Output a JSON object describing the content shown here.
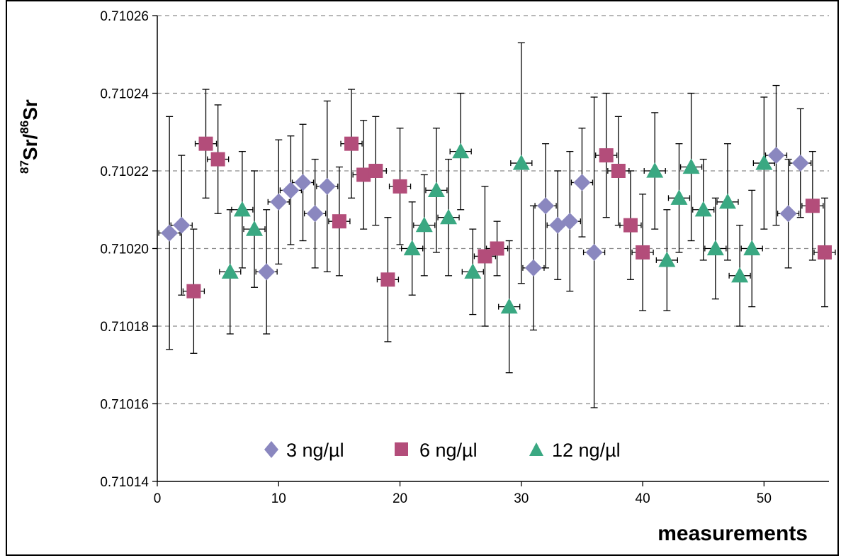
{
  "chart_data": {
    "type": "scatter",
    "xlabel": "measurements",
    "ylabel_parts": {
      "sup1": "87",
      "base1": "Sr/",
      "sup2": "86",
      "base2": "Sr"
    },
    "xlim": [
      0,
      55
    ],
    "ylim": [
      0.71014,
      0.71026
    ],
    "x_ticks": [
      0,
      10,
      20,
      30,
      40,
      50
    ],
    "y_ticks": [
      "0.71014",
      "0.71016",
      "0.71018",
      "0.71020",
      "0.71022",
      "0.71024",
      "0.71026"
    ],
    "y_tick_values": [
      0.71014,
      0.71016,
      0.71018,
      0.7102,
      0.71022,
      0.71024,
      0.71026
    ],
    "grid": "horizontal dashed",
    "legend_position": "bottom-center",
    "series": [
      {
        "name": "3 ng/µl",
        "marker": "diamond",
        "color": "#8a87bf",
        "points": [
          {
            "x": 1,
            "y": 0.710204,
            "err": 3e-05
          },
          {
            "x": 2,
            "y": 0.710206,
            "err": 1.8e-05
          },
          {
            "x": 9,
            "y": 0.710194,
            "err": 1.6e-05
          },
          {
            "x": 10,
            "y": 0.710212,
            "err": 1.6e-05
          },
          {
            "x": 11,
            "y": 0.710215,
            "err": 1.4e-05
          },
          {
            "x": 12,
            "y": 0.710217,
            "err": 1.5e-05
          },
          {
            "x": 13,
            "y": 0.710209,
            "err": 1.4e-05
          },
          {
            "x": 14,
            "y": 0.710216,
            "err": 2.2e-05
          },
          {
            "x": 31,
            "y": 0.710195,
            "err": 1.6e-05
          },
          {
            "x": 32,
            "y": 0.710211,
            "err": 1.6e-05
          },
          {
            "x": 33,
            "y": 0.710206,
            "err": 1.4e-05
          },
          {
            "x": 34,
            "y": 0.710207,
            "err": 1.8e-05
          },
          {
            "x": 35,
            "y": 0.710217,
            "err": 1.4e-05
          },
          {
            "x": 36,
            "y": 0.710199,
            "err": 4e-05
          },
          {
            "x": 51,
            "y": 0.710224,
            "err": 1.8e-05
          },
          {
            "x": 52,
            "y": 0.710209,
            "err": 1.4e-05
          },
          {
            "x": 53,
            "y": 0.710222,
            "err": 1.4e-05
          }
        ]
      },
      {
        "name": "6 ng/µl",
        "marker": "square",
        "color": "#b34d7a",
        "points": [
          {
            "x": 3,
            "y": 0.710189,
            "err": 1.6e-05
          },
          {
            "x": 4,
            "y": 0.710227,
            "err": 1.4e-05
          },
          {
            "x": 5,
            "y": 0.710223,
            "err": 1.4e-05
          },
          {
            "x": 15,
            "y": 0.710207,
            "err": 1.4e-05
          },
          {
            "x": 16,
            "y": 0.710227,
            "err": 1.4e-05
          },
          {
            "x": 17,
            "y": 0.710219,
            "err": 1.4e-05
          },
          {
            "x": 18,
            "y": 0.71022,
            "err": 1.4e-05
          },
          {
            "x": 19,
            "y": 0.710192,
            "err": 1.6e-05
          },
          {
            "x": 20,
            "y": 0.710216,
            "err": 1.5e-05
          },
          {
            "x": 27,
            "y": 0.710198,
            "err": 1.8e-05
          },
          {
            "x": 28,
            "y": 0.7102,
            "err": 7e-06
          },
          {
            "x": 37,
            "y": 0.710224,
            "err": 1.6e-05
          },
          {
            "x": 38,
            "y": 0.71022,
            "err": 1.4e-05
          },
          {
            "x": 39,
            "y": 0.710206,
            "err": 1.4e-05
          },
          {
            "x": 40,
            "y": 0.710199,
            "err": 1.5e-05
          },
          {
            "x": 54,
            "y": 0.710211,
            "err": 1.4e-05
          },
          {
            "x": 55,
            "y": 0.710199,
            "err": 1.4e-05
          }
        ]
      },
      {
        "name": "12 ng/µl",
        "marker": "triangle",
        "color": "#3aa882",
        "points": [
          {
            "x": 6,
            "y": 0.710194,
            "err": 1.6e-05
          },
          {
            "x": 7,
            "y": 0.71021,
            "err": 1.5e-05
          },
          {
            "x": 8,
            "y": 0.710205,
            "err": 1.5e-05
          },
          {
            "x": 21,
            "y": 0.7102,
            "err": 1.2e-05
          },
          {
            "x": 22,
            "y": 0.710206,
            "err": 1.3e-05
          },
          {
            "x": 23,
            "y": 0.710215,
            "err": 1.6e-05
          },
          {
            "x": 24,
            "y": 0.710208,
            "err": 1.5e-05
          },
          {
            "x": 25,
            "y": 0.710225,
            "err": 1.5e-05
          },
          {
            "x": 26,
            "y": 0.710194,
            "err": 1.1e-05
          },
          {
            "x": 29,
            "y": 0.710185,
            "err": 1.7e-05
          },
          {
            "x": 30,
            "y": 0.710222,
            "err": 3.1e-05
          },
          {
            "x": 41,
            "y": 0.71022,
            "err": 1.5e-05
          },
          {
            "x": 42,
            "y": 0.710197,
            "err": 1.3e-05
          },
          {
            "x": 43,
            "y": 0.710213,
            "err": 1.4e-05
          },
          {
            "x": 44,
            "y": 0.710221,
            "err": 1.9e-05
          },
          {
            "x": 45,
            "y": 0.71021,
            "err": 1.3e-05
          },
          {
            "x": 46,
            "y": 0.7102,
            "err": 1.3e-05
          },
          {
            "x": 47,
            "y": 0.710212,
            "err": 1.5e-05
          },
          {
            "x": 48,
            "y": 0.710193,
            "err": 1.3e-05
          },
          {
            "x": 49,
            "y": 0.7102,
            "err": 1.5e-05
          },
          {
            "x": 50,
            "y": 0.710222,
            "err": 1.7e-05
          }
        ]
      }
    ]
  }
}
